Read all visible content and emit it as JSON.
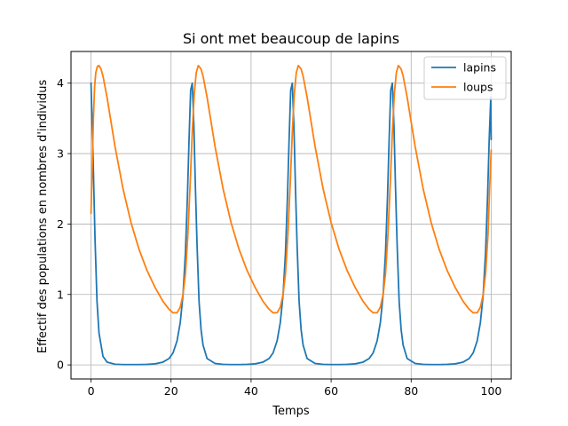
{
  "chart_data": {
    "type": "line",
    "title": "Si ont met beaucoup de lapins",
    "xlabel": "Temps",
    "ylabel": "Effectif des populations en nombres d'individus",
    "xlim": [
      -5,
      105
    ],
    "ylim": [
      -0.2,
      4.45
    ],
    "xticks": [
      0,
      20,
      40,
      60,
      80,
      100
    ],
    "yticks": [
      0,
      1,
      2,
      3,
      4
    ],
    "grid": true,
    "legend_position": "top-right",
    "series": [
      {
        "name": "lapins",
        "color": "#1f77b4",
        "x": [
          0,
          0.5,
          1.0,
          1.5,
          2.0,
          3.0,
          4.0,
          6.0,
          8.0,
          10.0,
          12.0,
          14.0,
          16.0,
          18.0,
          19.5,
          20.5,
          21.5,
          22.3,
          23.0,
          23.6,
          24.1,
          24.5,
          24.9,
          25.3,
          25.7,
          26.1,
          26.5,
          27.0,
          27.5,
          28.0,
          29.0,
          31.0,
          33.0,
          35.0,
          37.0,
          39.0,
          41.0,
          43.0,
          44.5,
          45.5,
          46.5,
          47.3,
          48.0,
          48.6,
          49.1,
          49.5,
          49.9,
          50.3,
          50.7,
          51.1,
          51.5,
          52.0,
          52.5,
          53.0,
          54.0,
          56.0,
          58.0,
          60.0,
          62.0,
          64.0,
          66.0,
          68.0,
          69.5,
          70.5,
          71.5,
          72.3,
          73.0,
          73.6,
          74.1,
          74.5,
          74.9,
          75.3,
          75.7,
          76.1,
          76.5,
          77.0,
          77.5,
          78.0,
          79.0,
          81.0,
          83.0,
          85.0,
          87.0,
          89.0,
          91.0,
          93.0,
          94.5,
          95.5,
          96.5,
          97.3,
          98.0,
          98.6,
          99.1,
          99.5,
          99.9,
          100.0
        ],
        "y": [
          4.0,
          3.0,
          1.8,
          0.9,
          0.45,
          0.12,
          0.04,
          0.01,
          0.005,
          0.005,
          0.005,
          0.007,
          0.015,
          0.04,
          0.09,
          0.17,
          0.34,
          0.6,
          1.0,
          1.6,
          2.4,
          3.2,
          3.9,
          4.0,
          3.4,
          2.5,
          1.7,
          0.9,
          0.5,
          0.28,
          0.09,
          0.02,
          0.007,
          0.005,
          0.005,
          0.007,
          0.015,
          0.04,
          0.09,
          0.17,
          0.34,
          0.6,
          1.0,
          1.6,
          2.4,
          3.2,
          3.9,
          4.0,
          3.4,
          2.5,
          1.7,
          0.9,
          0.5,
          0.28,
          0.09,
          0.02,
          0.007,
          0.005,
          0.005,
          0.007,
          0.015,
          0.04,
          0.09,
          0.17,
          0.34,
          0.6,
          1.0,
          1.6,
          2.4,
          3.2,
          3.9,
          4.0,
          3.4,
          2.5,
          1.7,
          0.9,
          0.5,
          0.28,
          0.09,
          0.02,
          0.007,
          0.005,
          0.005,
          0.007,
          0.015,
          0.04,
          0.09,
          0.17,
          0.34,
          0.6,
          1.0,
          1.6,
          2.4,
          3.2,
          3.8,
          3.2
        ]
      },
      {
        "name": "loups",
        "color": "#ff7f0e",
        "x": [
          0,
          0.3,
          0.6,
          0.9,
          1.2,
          1.6,
          2.0,
          2.5,
          3.0,
          4.0,
          5.0,
          6.0,
          8.0,
          10.0,
          12.0,
          14.0,
          16.0,
          18.0,
          19.5,
          20.5,
          21.5,
          22.3,
          23.0,
          23.6,
          24.2,
          24.8,
          25.3,
          25.8,
          26.3,
          26.8,
          27.5,
          28.0,
          29.0,
          30.0,
          31.0,
          33.0,
          35.0,
          37.0,
          39.0,
          41.0,
          43.0,
          44.5,
          45.5,
          46.5,
          47.3,
          48.0,
          48.6,
          49.2,
          49.8,
          50.3,
          50.8,
          51.3,
          51.8,
          52.5,
          53.0,
          54.0,
          55.0,
          56.0,
          58.0,
          60.0,
          62.0,
          64.0,
          66.0,
          68.0,
          69.5,
          70.5,
          71.5,
          72.3,
          73.0,
          73.6,
          74.2,
          74.8,
          75.3,
          75.8,
          76.3,
          76.8,
          77.5,
          78.0,
          79.0,
          80.0,
          81.0,
          83.0,
          85.0,
          87.0,
          89.0,
          91.0,
          93.0,
          94.5,
          95.5,
          96.5,
          97.3,
          98.0,
          98.6,
          99.2,
          99.6,
          100.0
        ],
        "y": [
          2.15,
          2.8,
          3.5,
          3.95,
          4.15,
          4.24,
          4.25,
          4.2,
          4.1,
          3.8,
          3.45,
          3.1,
          2.5,
          2.02,
          1.64,
          1.34,
          1.1,
          0.9,
          0.79,
          0.74,
          0.74,
          0.82,
          1.0,
          1.3,
          1.85,
          2.6,
          3.3,
          3.85,
          4.15,
          4.25,
          4.2,
          4.1,
          3.8,
          3.45,
          3.1,
          2.5,
          2.02,
          1.64,
          1.34,
          1.1,
          0.9,
          0.79,
          0.74,
          0.74,
          0.82,
          1.0,
          1.3,
          1.85,
          2.6,
          3.3,
          3.85,
          4.15,
          4.25,
          4.2,
          4.1,
          3.8,
          3.45,
          3.1,
          2.5,
          2.02,
          1.64,
          1.34,
          1.1,
          0.9,
          0.79,
          0.74,
          0.74,
          0.82,
          1.0,
          1.3,
          1.85,
          2.6,
          3.3,
          3.85,
          4.15,
          4.25,
          4.2,
          4.1,
          3.8,
          3.45,
          3.1,
          2.5,
          2.02,
          1.64,
          1.34,
          1.1,
          0.9,
          0.79,
          0.74,
          0.74,
          0.82,
          1.0,
          1.3,
          1.85,
          2.5,
          3.05
        ]
      }
    ]
  }
}
